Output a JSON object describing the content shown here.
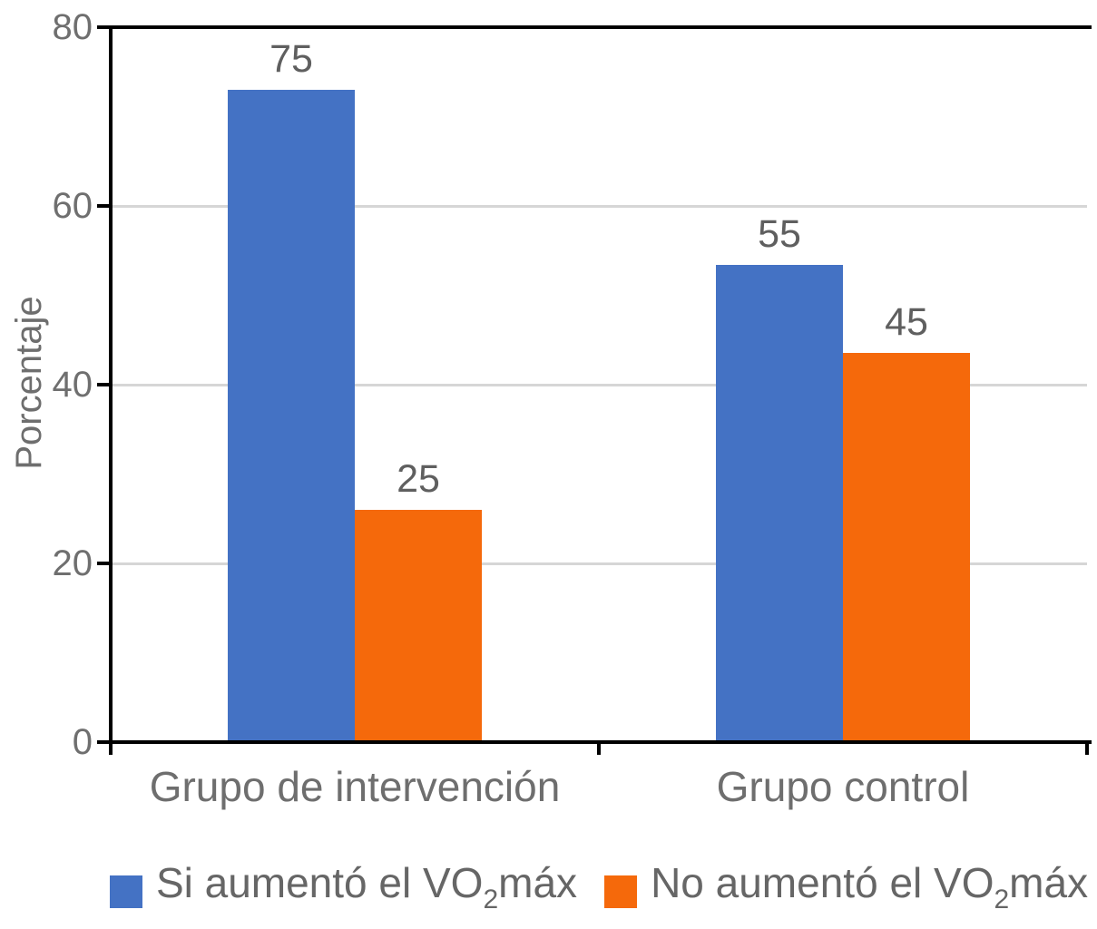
{
  "chart_data": {
    "type": "bar",
    "title": "",
    "xlabel": "",
    "ylabel": "Porcentaje",
    "ylim": [
      0,
      80
    ],
    "yticks": [
      0,
      20,
      40,
      60,
      80
    ],
    "grid": true,
    "legend_position": "bottom",
    "background": "#FFFFFF",
    "categories": [
      "Grupo de intervención",
      "Grupo control"
    ],
    "series": [
      {
        "name": "Si aumentó el VO2máx",
        "legend": {
          "pre": "Si aumentó el VO",
          "sub": "2",
          "post": "máx"
        },
        "color": "#4472C4",
        "values": [
          75,
          55
        ],
        "drawn_values": [
          73,
          53.4
        ]
      },
      {
        "name": "No aumentó el VO2máx",
        "legend": {
          "pre": "No aumentó el VO",
          "sub": "2",
          "post": "máx"
        },
        "color": "#F5690B",
        "values": [
          25,
          45
        ],
        "drawn_values": [
          26,
          43.6
        ]
      }
    ],
    "colors": {
      "axis": "#000000",
      "gridline": "#D6D6D6",
      "tick_text": "#6F6F6F",
      "category_text": "#6E6E6E",
      "bar_label_text": "#5F5F5F",
      "legend_text": "#666666"
    }
  }
}
